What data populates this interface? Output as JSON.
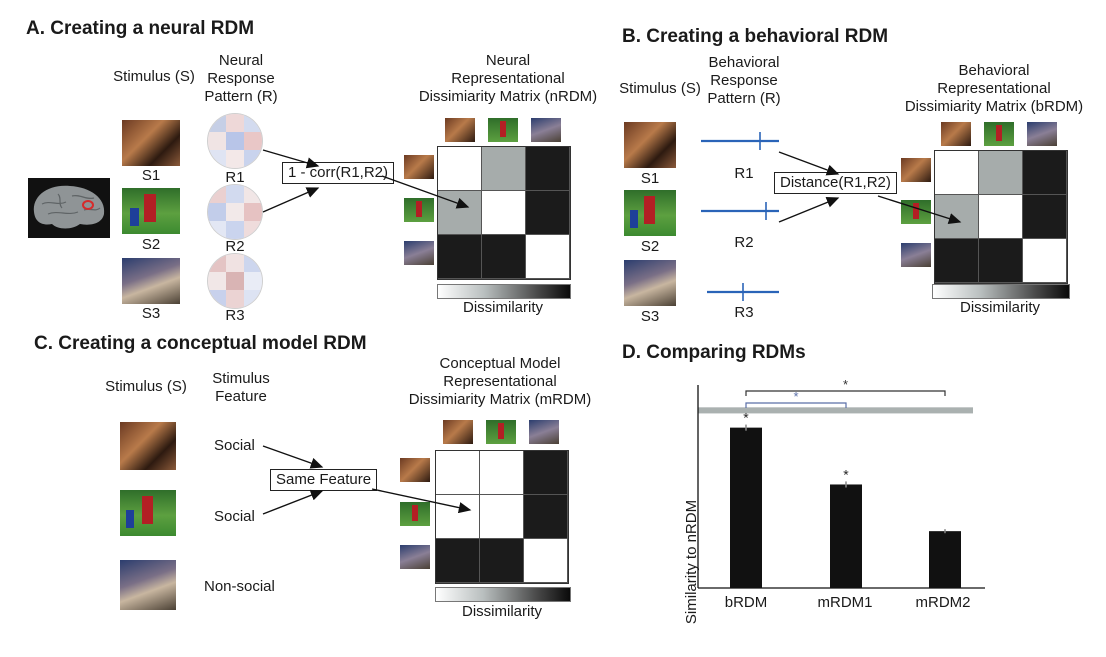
{
  "panelA": {
    "title": "A. Creating a neural RDM",
    "stimulus_header": "Stimulus (S)",
    "response_header": [
      "Neural",
      "Response",
      "Pattern (R)"
    ],
    "stim_labels": [
      "S1",
      "S2",
      "S3"
    ],
    "resp_labels": [
      "R1",
      "R2",
      "R3"
    ],
    "operation": "1 - corr(R1,R2)",
    "matrix_title": [
      "Neural",
      "Representational",
      "Dissimiarity Matrix (nRDM)"
    ],
    "colorbar_label": "Dissimilarity"
  },
  "panelB": {
    "title": "B. Creating a behavioral RDM",
    "stimulus_header": "Stimulus (S)",
    "response_header": [
      "Behavioral",
      "Response",
      "Pattern (R)"
    ],
    "stim_labels": [
      "S1",
      "S2",
      "S3"
    ],
    "resp_labels": [
      "R1",
      "R2",
      "R3"
    ],
    "operation": "Distance(R1,R2)",
    "matrix_title": [
      "Behavioral",
      "Representational",
      "Dissimiarity Matrix (bRDM)"
    ],
    "colorbar_label": "Dissimilarity"
  },
  "panelC": {
    "title": "C. Creating a conceptual model RDM",
    "stimulus_header": "Stimulus (S)",
    "feature_header": [
      "Stimulus",
      "Feature"
    ],
    "features": [
      "Social",
      "Social",
      "Non-social"
    ],
    "operation": "Same Feature",
    "matrix_title": [
      "Conceptual Model",
      "Representational",
      "Dissimiarity Matrix (mRDM)"
    ],
    "colorbar_label": "Dissimilarity"
  },
  "panelD": {
    "title": "D. Comparing RDMs",
    "significance_marker": "*"
  },
  "matrices": {
    "neural": [
      [
        0,
        1,
        2
      ],
      [
        1,
        0,
        2
      ],
      [
        2,
        2,
        0
      ]
    ],
    "behavioral": [
      [
        0,
        1,
        2
      ],
      [
        1,
        0,
        2
      ],
      [
        2,
        2,
        0
      ]
    ],
    "conceptual": [
      [
        0,
        0,
        2
      ],
      [
        0,
        0,
        2
      ],
      [
        2,
        2,
        0
      ]
    ]
  },
  "colors": {
    "mid_gray": "#a6acab",
    "black": "#1b1b1b",
    "line_blue": "#2a64b8",
    "noise_band": "#aab1b0",
    "bar": "#111111"
  },
  "chart_data": {
    "type": "bar",
    "categories": [
      "bRDM",
      "mRDM1",
      "mRDM2"
    ],
    "values": [
      0.79,
      0.51,
      0.28
    ],
    "errors": [
      0.015,
      0.015,
      0.01
    ],
    "ylabel": "Similarity to nRDM",
    "ylim": [
      0,
      1
    ],
    "noise_ceiling": [
      0.86,
      0.89
    ],
    "significant_bars": [
      "bRDM",
      "mRDM1"
    ],
    "comparisons": [
      {
        "pair": [
          "bRDM",
          "mRDM1"
        ],
        "label": "*"
      },
      {
        "pair": [
          "bRDM",
          "mRDM2"
        ],
        "label": "*"
      }
    ]
  }
}
